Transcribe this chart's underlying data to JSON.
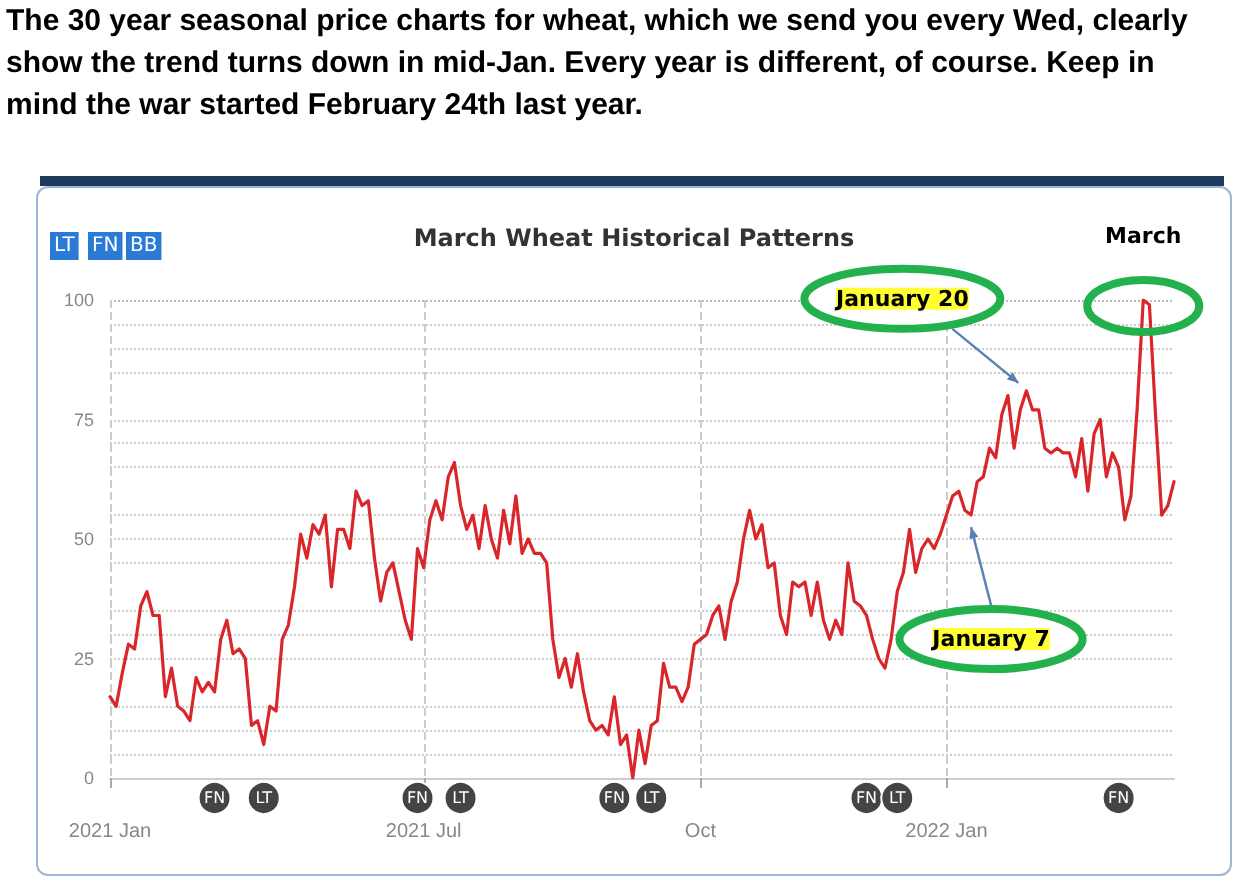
{
  "chart_data": {
    "type": "line",
    "title": "March Wheat Historical Patterns",
    "subtitle": "The 30 year seasonal price charts for wheat, which we send you every Wed, clearly show the trend turns down in mid-Jan. Every year is different, of course. Keep in mind the war started February 24th last year.",
    "annotations": [
      "LT FN BB",
      "January 20",
      "January 7",
      "March",
      "FN",
      "LT",
      "FN",
      "LT",
      "FN",
      "LT",
      "FN",
      "LT",
      "FN"
    ],
    "categories": [
      "2021 Jan",
      null,
      null,
      null,
      null,
      null,
      null,
      null,
      null,
      null,
      null,
      null,
      null,
      null,
      null,
      null,
      null,
      null,
      null,
      null,
      null,
      null,
      null,
      null,
      null,
      null,
      null,
      null,
      null,
      null,
      null,
      null,
      null,
      null,
      null,
      null,
      null,
      null,
      null,
      null,
      null,
      null,
      null,
      null,
      null,
      null,
      null,
      null,
      null,
      null,
      null,
      "2021 Jul",
      null,
      null,
      null,
      null,
      null,
      null,
      null,
      null,
      null,
      null,
      null,
      null,
      null,
      null,
      null,
      null,
      null,
      null,
      null,
      null,
      null,
      null,
      null,
      null,
      null,
      null,
      null,
      null,
      null,
      null,
      null,
      null,
      null,
      null,
      null,
      null,
      null,
      null,
      null,
      null,
      null,
      null,
      null,
      null,
      "Oct",
      null,
      null,
      null,
      null,
      null,
      null,
      null,
      null,
      null,
      null,
      null,
      null,
      null,
      null,
      null,
      null,
      null,
      null,
      null,
      null,
      null,
      null,
      null,
      null,
      null,
      null,
      null,
      null,
      null,
      null,
      null,
      null,
      null,
      null,
      null,
      null,
      null,
      null,
      null,
      "2022 Jan",
      null,
      null,
      null,
      null,
      null,
      null,
      null,
      null,
      null,
      null,
      null,
      null,
      null,
      null,
      null,
      null,
      null,
      null,
      null,
      null,
      null,
      null,
      null,
      null,
      null,
      null,
      null,
      null,
      null,
      null,
      null,
      null,
      null,
      null,
      null,
      null,
      null
    ],
    "series": [
      {
        "color": "#d9262b",
        "values": [
          17,
          15,
          22,
          28,
          27,
          36,
          39,
          34,
          34,
          17,
          23,
          15,
          14,
          12,
          21,
          18,
          20,
          18,
          29,
          33,
          26,
          27,
          25,
          11,
          12,
          7,
          15,
          14,
          29,
          32,
          40,
          51,
          46,
          53,
          51,
          55,
          40,
          52,
          52,
          48,
          60,
          57,
          58,
          46,
          37,
          43,
          45,
          39,
          33,
          29,
          48,
          44,
          54,
          58,
          54,
          63,
          66,
          57,
          52,
          55,
          48,
          57,
          50,
          46,
          56,
          49,
          59,
          47,
          50,
          47,
          47,
          45,
          29,
          21,
          25,
          19,
          26,
          18,
          12,
          10,
          11,
          9,
          17,
          7,
          9,
          0,
          10,
          3,
          11,
          12,
          24,
          19,
          19,
          16,
          19,
          28,
          29,
          30,
          34,
          36,
          29,
          37,
          41,
          50,
          56,
          50,
          53,
          44,
          45,
          34,
          30,
          41,
          40,
          41,
          34,
          41,
          33,
          29,
          33,
          30,
          45,
          37,
          36,
          34,
          29,
          25,
          23,
          29,
          39,
          43,
          52,
          43,
          48,
          50,
          48,
          51,
          55,
          59,
          60,
          56,
          55,
          62,
          63,
          69,
          67,
          76,
          80,
          69,
          77,
          81,
          77,
          77,
          69,
          68,
          69,
          68,
          68,
          63,
          71,
          60,
          72,
          75,
          63,
          68,
          65,
          54,
          59,
          77,
          100,
          99,
          76,
          55,
          57,
          62
        ]
      }
    ],
    "ylim": [
      0,
      100
    ],
    "yticks": [
      0,
      25,
      50,
      75,
      100
    ],
    "grid": true,
    "marker": "none",
    "line_style": "solid"
  }
}
